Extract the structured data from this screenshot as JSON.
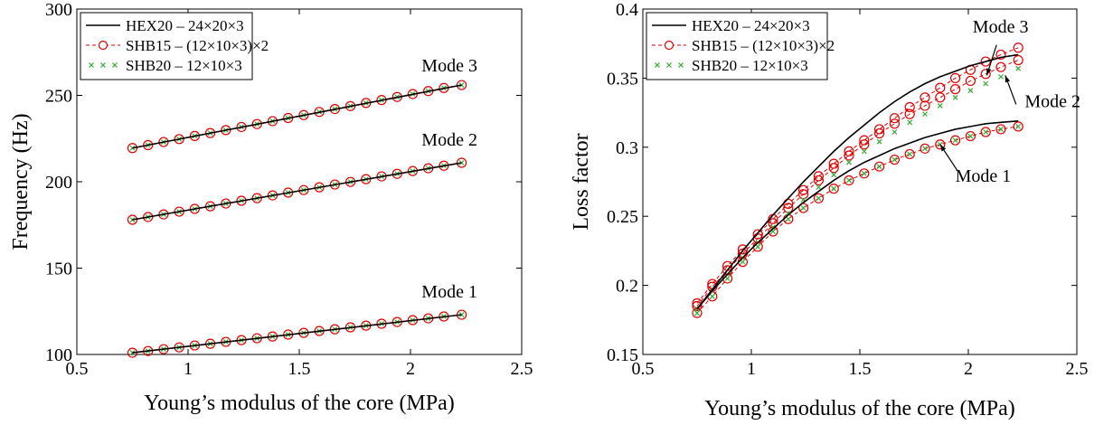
{
  "chart_data": [
    {
      "type": "line",
      "xlabel": "Young’s modulus of the core (MPa)",
      "ylabel": "Frequency (Hz)",
      "xlim": [
        0.5,
        2.5
      ],
      "ylim": [
        100,
        300
      ],
      "xticks": [
        "0.5",
        "1",
        "1.5",
        "2",
        "2.5"
      ],
      "yticks": [
        "100",
        "150",
        "200",
        "250",
        "300"
      ],
      "legend": {
        "position": "top-left",
        "entries": [
          "HEX20 – 24×20×3",
          "SHB15 – (12×10×3)×2",
          "SHB20 – 12×10×3"
        ]
      },
      "x": [
        0.75,
        0.82,
        0.89,
        0.96,
        1.03,
        1.1,
        1.17,
        1.24,
        1.31,
        1.38,
        1.45,
        1.52,
        1.59,
        1.66,
        1.73,
        1.8,
        1.87,
        1.94,
        2.01,
        2.08,
        2.15,
        2.23
      ],
      "series": [
        {
          "name": "HEX20 – 24×20×3",
          "style": "solid",
          "color": "#000000",
          "mode": "Mode 1",
          "x": [
            0.75,
            2.23
          ],
          "values": [
            101.0,
            123.0
          ]
        },
        {
          "name": "HEX20 – 24×20×3",
          "style": "solid",
          "color": "#000000",
          "mode": "Mode 2",
          "x": [
            0.75,
            2.23
          ],
          "values": [
            178.0,
            211.0
          ]
        },
        {
          "name": "HEX20 – 24×20×3",
          "style": "solid",
          "color": "#000000",
          "mode": "Mode 3",
          "x": [
            0.75,
            2.23
          ],
          "values": [
            219.5,
            256.0
          ]
        },
        {
          "name": "SHB15 – (12×10×3)×2",
          "style": "circle",
          "color": "#e00000",
          "mode": "Mode 1",
          "values": [
            101.0,
            102.0,
            103.1,
            104.1,
            105.2,
            106.2,
            107.3,
            108.3,
            109.4,
            110.4,
            111.5,
            112.5,
            113.6,
            114.6,
            115.7,
            116.7,
            117.8,
            118.8,
            119.9,
            120.9,
            122.0,
            123.0
          ]
        },
        {
          "name": "SHB15 – (12×10×3)×2",
          "style": "circle",
          "color": "#e00000",
          "mode": "Mode 2",
          "values": [
            178.0,
            179.6,
            181.1,
            182.7,
            184.3,
            185.8,
            187.4,
            189.0,
            190.5,
            192.1,
            193.7,
            195.2,
            196.8,
            198.4,
            199.9,
            201.5,
            203.1,
            204.6,
            206.2,
            207.8,
            209.3,
            211.0
          ]
        },
        {
          "name": "SHB15 – (12×10×3)×2",
          "style": "circle",
          "color": "#e00000",
          "mode": "Mode 3",
          "values": [
            219.5,
            221.2,
            223.0,
            224.7,
            226.5,
            228.2,
            229.9,
            231.7,
            233.4,
            235.1,
            236.9,
            238.6,
            240.4,
            242.1,
            243.8,
            245.6,
            247.3,
            249.1,
            250.8,
            252.5,
            254.3,
            256.0
          ]
        },
        {
          "name": "SHB20 – 12×10×3",
          "style": "x",
          "color": "#33aa33",
          "mode": "Mode 1",
          "values": [
            101.0,
            102.0,
            103.1,
            104.1,
            105.2,
            106.2,
            107.3,
            108.3,
            109.4,
            110.4,
            111.5,
            112.5,
            113.6,
            114.6,
            115.7,
            116.7,
            117.8,
            118.8,
            119.9,
            120.9,
            122.0,
            123.0
          ]
        },
        {
          "name": "SHB20 – 12×10×3",
          "style": "x",
          "color": "#33aa33",
          "mode": "Mode 2",
          "values": [
            178.0,
            179.6,
            181.1,
            182.7,
            184.3,
            185.8,
            187.4,
            189.0,
            190.5,
            192.1,
            193.7,
            195.2,
            196.8,
            198.4,
            199.9,
            201.5,
            203.1,
            204.6,
            206.2,
            207.8,
            209.3,
            211.0
          ]
        },
        {
          "name": "SHB20 – 12×10×3",
          "style": "x",
          "color": "#33aa33",
          "mode": "Mode 3",
          "values": [
            219.5,
            221.2,
            223.0,
            224.7,
            226.5,
            228.2,
            229.9,
            231.7,
            233.4,
            235.1,
            236.9,
            238.6,
            240.4,
            242.1,
            243.8,
            245.6,
            247.3,
            249.1,
            250.8,
            252.5,
            254.3,
            256.0
          ]
        }
      ],
      "annotations": [
        {
          "text": "Mode 3",
          "x": 2.05,
          "y": 264
        },
        {
          "text": "Mode 2",
          "x": 2.05,
          "y": 221
        },
        {
          "text": "Mode 1",
          "x": 2.05,
          "y": 133
        }
      ]
    },
    {
      "type": "line",
      "xlabel": "Young’s modulus of the core (MPa)",
      "ylabel": "Loss factor",
      "xlim": [
        0.5,
        2.5
      ],
      "ylim": [
        0.15,
        0.4
      ],
      "xticks": [
        "0.5",
        "1",
        "1.5",
        "2",
        "2.5"
      ],
      "yticks": [
        "0.15",
        "0.2",
        "0.25",
        "0.3",
        "0.35",
        "0.4"
      ],
      "legend": {
        "position": "top-left",
        "entries": [
          "HEX20 – 24×20×3",
          "SHB15 – (12×10×3)×2",
          "SHB20 – 12×10×3"
        ]
      },
      "x": [
        0.75,
        0.82,
        0.89,
        0.96,
        1.03,
        1.1,
        1.17,
        1.24,
        1.31,
        1.38,
        1.45,
        1.52,
        1.59,
        1.66,
        1.73,
        1.8,
        1.87,
        1.94,
        2.01,
        2.08,
        2.15,
        2.23
      ],
      "series": [
        {
          "name": "HEX20 – 24×20×3",
          "style": "solid",
          "color": "#000000",
          "mode": "Mode 1",
          "values": [
            0.183,
            0.196,
            0.208,
            0.22,
            0.231,
            0.241,
            0.251,
            0.26,
            0.268,
            0.276,
            0.283,
            0.289,
            0.294,
            0.299,
            0.303,
            0.307,
            0.31,
            0.313,
            0.315,
            0.317,
            0.318,
            0.319
          ]
        },
        {
          "name": "HEX20 – 24×20×3",
          "style": "solid",
          "color": "#000000",
          "mode": "Mode 2/3",
          "values": [
            0.183,
            0.197,
            0.211,
            0.225,
            0.238,
            0.251,
            0.263,
            0.275,
            0.286,
            0.297,
            0.307,
            0.316,
            0.325,
            0.333,
            0.34,
            0.346,
            0.351,
            0.355,
            0.359,
            0.362,
            0.365,
            0.367
          ]
        },
        {
          "name": "SHB15 – (12×10×3)×2",
          "style": "circle",
          "color": "#e00000",
          "mode": "Mode 1",
          "values": [
            0.18,
            0.192,
            0.205,
            0.217,
            0.228,
            0.239,
            0.248,
            0.256,
            0.263,
            0.27,
            0.276,
            0.281,
            0.286,
            0.291,
            0.295,
            0.299,
            0.302,
            0.305,
            0.308,
            0.311,
            0.313,
            0.315
          ]
        },
        {
          "name": "SHB15 – (12×10×3)×2",
          "style": "circle",
          "color": "#e00000",
          "mode": "Mode 2",
          "values": [
            0.185,
            0.199,
            0.211,
            0.223,
            0.234,
            0.245,
            0.256,
            0.266,
            0.276,
            0.285,
            0.294,
            0.302,
            0.31,
            0.317,
            0.324,
            0.33,
            0.336,
            0.342,
            0.348,
            0.353,
            0.358,
            0.363
          ]
        },
        {
          "name": "SHB15 – (12×10×3)×2",
          "style": "circle",
          "color": "#e00000",
          "mode": "Mode 3",
          "values": [
            0.187,
            0.201,
            0.214,
            0.226,
            0.237,
            0.248,
            0.259,
            0.269,
            0.279,
            0.288,
            0.297,
            0.305,
            0.313,
            0.321,
            0.329,
            0.336,
            0.343,
            0.35,
            0.356,
            0.362,
            0.367,
            0.372
          ]
        },
        {
          "name": "SHB20 – 12×10×3",
          "style": "x",
          "color": "#33aa33",
          "mode": "Mode 1",
          "values": [
            0.18,
            0.192,
            0.205,
            0.217,
            0.228,
            0.239,
            0.248,
            0.256,
            0.263,
            0.27,
            0.276,
            0.281,
            0.286,
            0.291,
            0.295,
            0.299,
            0.302,
            0.305,
            0.308,
            0.311,
            0.313,
            0.315
          ]
        },
        {
          "name": "SHB20 – 12×10×3",
          "style": "x",
          "color": "#33aa33",
          "mode": "Mode 2",
          "values": [
            0.183,
            0.196,
            0.208,
            0.22,
            0.231,
            0.242,
            0.252,
            0.262,
            0.271,
            0.28,
            0.289,
            0.297,
            0.304,
            0.311,
            0.318,
            0.324,
            0.33,
            0.336,
            0.341,
            0.346,
            0.351,
            0.357
          ]
        }
      ],
      "annotations": [
        {
          "text": "Mode 3",
          "x": 2.02,
          "y": 0.383
        },
        {
          "text": "Mode 2",
          "x": 2.26,
          "y": 0.329
        },
        {
          "text": "Mode 1",
          "x": 1.94,
          "y": 0.275
        }
      ]
    }
  ]
}
